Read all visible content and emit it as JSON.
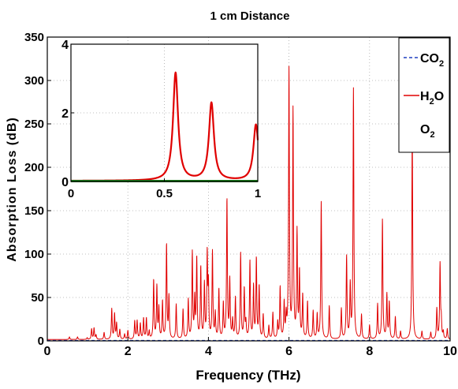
{
  "chart_data": {
    "type": "line",
    "title": "1 cm Distance",
    "xlabel": "Frequency (THz)",
    "ylabel": "Absorption Loss (dB)",
    "xlim": [
      0,
      10
    ],
    "ylim": [
      0,
      350
    ],
    "xticks": [
      0,
      2,
      4,
      6,
      8,
      10
    ],
    "yticks": [
      0,
      50,
      100,
      150,
      200,
      250,
      300,
      350
    ],
    "grid": true,
    "legend_position": "top-right",
    "series": [
      {
        "name": "CO2",
        "name_parts": [
          "CO",
          "2"
        ],
        "color": "#1f3fbf",
        "style": "dashed",
        "x": [
          0,
          10
        ],
        "y": [
          0,
          0
        ]
      },
      {
        "name": "H2O",
        "name_parts": [
          "H",
          "2",
          "O"
        ],
        "color": "#e00000",
        "style": "solid",
        "baseline": 1.5,
        "x": [
          0.55,
          0.75,
          0.99,
          1.1,
          1.16,
          1.21,
          1.41,
          1.6,
          1.67,
          1.72,
          1.8,
          1.92,
          2.0,
          2.17,
          2.23,
          2.31,
          2.39,
          2.46,
          2.53,
          2.64,
          2.72,
          2.77,
          2.86,
          2.96,
          3.02,
          3.2,
          3.37,
          3.5,
          3.6,
          3.66,
          3.71,
          3.81,
          3.9,
          3.97,
          4.0,
          4.1,
          4.17,
          4.26,
          4.37,
          4.46,
          4.53,
          4.6,
          4.67,
          4.8,
          4.89,
          4.93,
          5.03,
          5.12,
          5.19,
          5.26,
          5.36,
          5.5,
          5.6,
          5.72,
          5.78,
          5.88,
          5.93,
          6.0,
          6.1,
          6.2,
          6.26,
          6.34,
          6.46,
          6.6,
          6.7,
          6.8,
          7.0,
          7.3,
          7.43,
          7.52,
          7.6,
          7.8,
          8.0,
          8.2,
          8.32,
          8.43,
          8.49,
          8.64,
          8.77,
          9.06,
          9.3,
          9.52,
          9.67,
          9.75,
          9.78,
          9.83,
          9.93
        ],
        "y": [
          3,
          3,
          2,
          12,
          13,
          5,
          8,
          35,
          29,
          18,
          11,
          6,
          10,
          21,
          21,
          18,
          24,
          24,
          9,
          68,
          60,
          35,
          43,
          109,
          48,
          40,
          34,
          45,
          99,
          45,
          92,
          82,
          62,
          95,
          58,
          100,
          29,
          57,
          40,
          161,
          67,
          21,
          47,
          98,
          57,
          18,
          89,
          60,
          92,
          60,
          28,
          15,
          30,
          19,
          59,
          40,
          24,
          309,
          262,
          122,
          76,
          50,
          43,
          32,
          28,
          158,
          38,
          35,
          95,
          61,
          288,
          28,
          16,
          40,
          138,
          51,
          42,
          26,
          9,
          246,
          9,
          8,
          35,
          86,
          20,
          8,
          12
        ]
      },
      {
        "name": "O2",
        "name_parts": [
          "O",
          "2"
        ],
        "color": "#1a7a1a",
        "style": "solid",
        "x": [
          0,
          10
        ],
        "y": [
          0,
          0
        ]
      }
    ],
    "inset": {
      "xlim": [
        0,
        1
      ],
      "ylim": [
        0,
        4
      ],
      "xticks": [
        0,
        0.5,
        1
      ],
      "xtick_labels": [
        "0",
        "0.5",
        "1"
      ],
      "yticks": [
        0,
        2,
        4
      ],
      "grid": true,
      "h2o_baseline": 0.02,
      "h2o_peaks": {
        "x": [
          0.56,
          0.752,
          0.99
        ],
        "y": [
          3.14,
          2.26,
          1.63
        ]
      }
    }
  }
}
